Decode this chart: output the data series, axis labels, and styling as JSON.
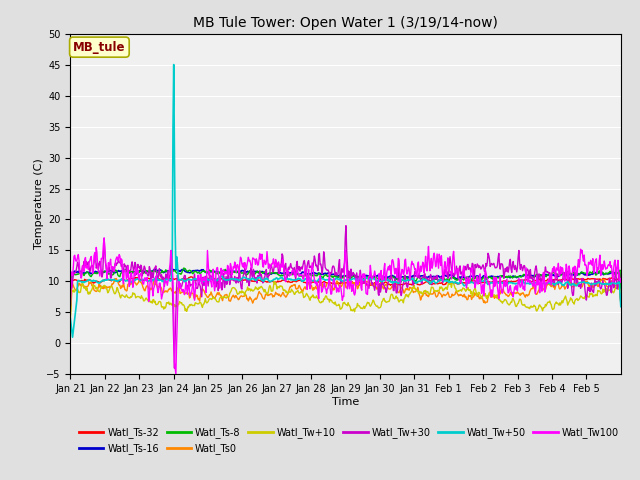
{
  "title": "MB Tule Tower: Open Water 1 (3/19/14-now)",
  "xlabel": "Time",
  "ylabel": "Temperature (C)",
  "ylim": [
    -5,
    50
  ],
  "yticks": [
    -5,
    0,
    5,
    10,
    15,
    20,
    25,
    30,
    35,
    40,
    45,
    50
  ],
  "fig_bg_color": "#e0e0e0",
  "plot_bg_color": "#f0f0f0",
  "grid_color": "white",
  "series": [
    {
      "label": "Watl_Ts-32",
      "color": "#ff0000"
    },
    {
      "label": "Watl_Ts-16",
      "color": "#0000cc"
    },
    {
      "label": "Watl_Ts-8",
      "color": "#00bb00"
    },
    {
      "label": "Watl_Ts0",
      "color": "#ff8800"
    },
    {
      "label": "Watl_Tw+10",
      "color": "#cccc00"
    },
    {
      "label": "Watl_Tw+30",
      "color": "#cc00cc"
    },
    {
      "label": "Watl_Tw+50",
      "color": "#00cccc"
    },
    {
      "label": "Watl_Tw100",
      "color": "#ff00ff"
    }
  ],
  "legend_label": "MB_tule",
  "legend_label_color": "#880000",
  "legend_box_facecolor": "#ffffcc",
  "legend_box_edgecolor": "#aaaa00",
  "x_tick_labels": [
    "Jan 21",
    "Jan 22",
    "Jan 23",
    "Jan 24",
    "Jan 25",
    "Jan 26",
    "Jan 27",
    "Jan 28",
    "Jan 29",
    "Jan 30",
    "Jan 31",
    "Feb 1",
    "Feb 2",
    "Feb 3",
    "Feb 4",
    "Feb 5"
  ]
}
